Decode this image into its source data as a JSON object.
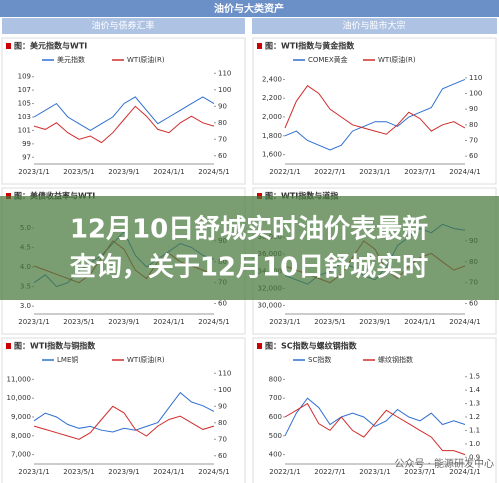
{
  "header": {
    "title": "油价与大类资产",
    "left_section": "油价与债券汇率",
    "right_section": "油价与股市大宗"
  },
  "overlay": {
    "headline": [
      "12月10日舒城实时油价表最新",
      "查询，关于12月10日舒城实时"
    ]
  },
  "watermark": "公众号 · 能源研发中心",
  "chart_data": [
    {
      "type": "line",
      "title": "图：美元指数与WTI",
      "categories": [
        "2023/1/1",
        null,
        null,
        null,
        "2023/5/1",
        null,
        null,
        null,
        "2023/9/1",
        null,
        null,
        null,
        "2024/1/1",
        null,
        null,
        null,
        "2024/5/1"
      ],
      "series": [
        {
          "name": "美元指数",
          "color": "#2f6fd0",
          "values": [
            103,
            104,
            105,
            103,
            102,
            101,
            102,
            103,
            105,
            106,
            104,
            102,
            103,
            104,
            105,
            106,
            105
          ]
        },
        {
          "name": "WTI原油(R)",
          "color": "#d02c2c",
          "axis": "y2",
          "values": [
            78,
            76,
            80,
            74,
            70,
            72,
            68,
            74,
            82,
            90,
            84,
            76,
            74,
            80,
            84,
            80,
            78
          ]
        }
      ],
      "ylim": [
        96,
        110
      ],
      "yticks": [
        97,
        99,
        101,
        103,
        105,
        107,
        109
      ],
      "y2lim": [
        55,
        112
      ],
      "y2ticks": [
        60,
        70,
        80,
        90,
        100,
        110
      ]
    },
    {
      "type": "line",
      "title": "图：WTI指数与黄金指数",
      "categories": [
        "2022/1/1",
        null,
        null,
        null,
        "2022/7/1",
        null,
        null,
        null,
        "2023/1/1",
        null,
        null,
        null,
        "2023/7/1",
        null,
        null,
        null,
        "2024/4/1"
      ],
      "series": [
        {
          "name": "COMEX黄金",
          "color": "#2f6fd0",
          "values": [
            1800,
            1850,
            1750,
            1700,
            1650,
            1700,
            1850,
            1900,
            1950,
            1950,
            1900,
            2000,
            2050,
            2100,
            2300,
            2350,
            2400
          ]
        },
        {
          "name": "WTI原油(R)",
          "color": "#d02c2c",
          "axis": "y2",
          "values": [
            78,
            95,
            105,
            100,
            90,
            85,
            80,
            78,
            76,
            74,
            80,
            88,
            84,
            76,
            80,
            82,
            78
          ]
        }
      ],
      "ylim": [
        1500,
        2500
      ],
      "yticks": [
        {
          "value": 1600,
          "label": "1,600"
        },
        {
          "value": 1800,
          "label": "1,800"
        },
        {
          "value": 2000,
          "label": "2,000"
        },
        {
          "value": 2200,
          "label": "2,200"
        },
        {
          "value": 2400,
          "label": "2,400"
        }
      ],
      "y2lim": [
        55,
        115
      ],
      "y2ticks": [
        60,
        70,
        80,
        90,
        100,
        110
      ]
    },
    {
      "type": "line",
      "title": "图：美债收益率与WTI",
      "categories": [
        "2023/1/1",
        null,
        null,
        null,
        "2023/5/1",
        null,
        null,
        null,
        "2023/9/1",
        null,
        null,
        null,
        "2024/1/1",
        null,
        null,
        null,
        "2024/5/1"
      ],
      "series": [
        {
          "color": "#2f6fd0",
          "values": [
            3.6,
            3.8,
            3.5,
            3.6,
            3.9,
            4.1,
            4.3,
            4.6,
            4.9,
            4.3,
            4.0,
            4.2,
            4.4,
            4.6,
            4.5,
            4.3,
            4.2
          ]
        },
        {
          "color": "#d02c2c",
          "axis": "y2",
          "values": [
            78,
            76,
            74,
            72,
            70,
            74,
            82,
            90,
            86,
            76,
            72,
            80,
            84,
            80,
            78,
            76,
            74
          ]
        }
      ],
      "ylim": [
        2.8,
        5.2
      ],
      "yticks": [
        {
          "value": 3,
          "label": "3.0"
        },
        3.5,
        {
          "value": 4,
          "label": "4.0"
        },
        4.5,
        {
          "value": 5,
          "label": "5.0"
        }
      ],
      "y2lim": [
        55,
        100
      ],
      "y2ticks": [
        60,
        70,
        80,
        90
      ]
    },
    {
      "type": "line",
      "title": "图：WTI指数与道指",
      "categories": [
        "2023/1/1",
        null,
        null,
        null,
        "2023/5/1",
        null,
        null,
        null,
        "2023/9/1",
        null,
        null,
        null,
        "2024/1/1",
        null,
        null,
        null,
        "2024/4/1"
      ],
      "series": [
        {
          "color": "#2f6fd0",
          "values": [
            33500,
            33000,
            32500,
            33500,
            34000,
            35000,
            34500,
            33500,
            33000,
            34500,
            37000,
            38000,
            39000,
            38500,
            39500,
            39000,
            38800
          ]
        },
        {
          "color": "#d02c2c",
          "axis": "y2",
          "values": [
            78,
            76,
            74,
            72,
            70,
            74,
            82,
            90,
            86,
            76,
            72,
            78,
            82,
            84,
            80,
            76,
            78
          ]
        }
      ],
      "ylim": [
        29000,
        40000
      ],
      "yticks": [
        {
          "value": 30000,
          "label": "30,000"
        },
        {
          "value": 32000,
          "label": "32,000"
        },
        {
          "value": 34000,
          "label": "34,000"
        },
        {
          "value": 36000,
          "label": "36,000"
        },
        {
          "value": 38000,
          "label": "38,000"
        }
      ],
      "y2lim": [
        55,
        100
      ],
      "y2ticks": [
        60,
        70,
        80,
        90
      ]
    },
    {
      "type": "line",
      "title": "图：WTI指数与铜指数",
      "categories": [
        "2023/1/1",
        null,
        null,
        null,
        "2023/5/1",
        null,
        null,
        null,
        "2023/9/1",
        null,
        null,
        null,
        "2024/1/1",
        null,
        null,
        null,
        "2024/5/1"
      ],
      "series": [
        {
          "name": "LME铜",
          "color": "#2f6fd0",
          "values": [
            8800,
            9200,
            9000,
            8600,
            8400,
            8500,
            8300,
            8200,
            8400,
            8300,
            8500,
            8700,
            9500,
            10300,
            9800,
            9600,
            9300
          ]
        },
        {
          "name": "WTI原油(R)",
          "color": "#d02c2c",
          "axis": "y2",
          "values": [
            78,
            76,
            74,
            72,
            70,
            74,
            82,
            90,
            86,
            76,
            72,
            78,
            82,
            84,
            80,
            76,
            78
          ]
        }
      ],
      "ylim": [
        6500,
        11500
      ],
      "yticks": [
        {
          "value": 7000,
          "label": "7,000"
        },
        {
          "value": 8000,
          "label": "8,000"
        },
        {
          "value": 9000,
          "label": "9,000"
        },
        {
          "value": 10000,
          "label": "10,000"
        },
        {
          "value": 11000,
          "label": "11,000"
        }
      ],
      "y2lim": [
        55,
        112
      ],
      "y2ticks": [
        60,
        70,
        80,
        90,
        100,
        110
      ]
    },
    {
      "type": "line",
      "title": "图：SC指数与螺纹钢指数",
      "categories": [
        "2022/1/1",
        null,
        null,
        null,
        "2022/7/1",
        null,
        null,
        null,
        "2023/1/1",
        null,
        null,
        null,
        "2023/7/1",
        null,
        null,
        null,
        "2024/1/1"
      ],
      "series": [
        {
          "name": "SC指数",
          "color": "#2f6fd0",
          "values": [
            500,
            620,
            700,
            650,
            560,
            600,
            620,
            600,
            550,
            580,
            640,
            600,
            580,
            620,
            560,
            580,
            560
          ]
        },
        {
          "name": "螺纹钢指数",
          "color": "#d02c2c",
          "axis": "y2",
          "values": [
            1.2,
            1.25,
            1.3,
            1.15,
            1.1,
            1.2,
            1.1,
            1.05,
            1.15,
            1.25,
            1.2,
            1.15,
            1.1,
            1.05,
            0.95,
            0.95,
            0.92
          ]
        }
      ],
      "ylim": [
        350,
        850
      ],
      "yticks": [
        400,
        500,
        600,
        700,
        800
      ],
      "y2lim": [
        0.85,
        1.55
      ],
      "y2ticks": [
        0.9,
        {
          "value": 1,
          "label": "1.0"
        },
        1.1,
        1.2,
        1.3,
        1.4,
        1.5
      ]
    }
  ]
}
